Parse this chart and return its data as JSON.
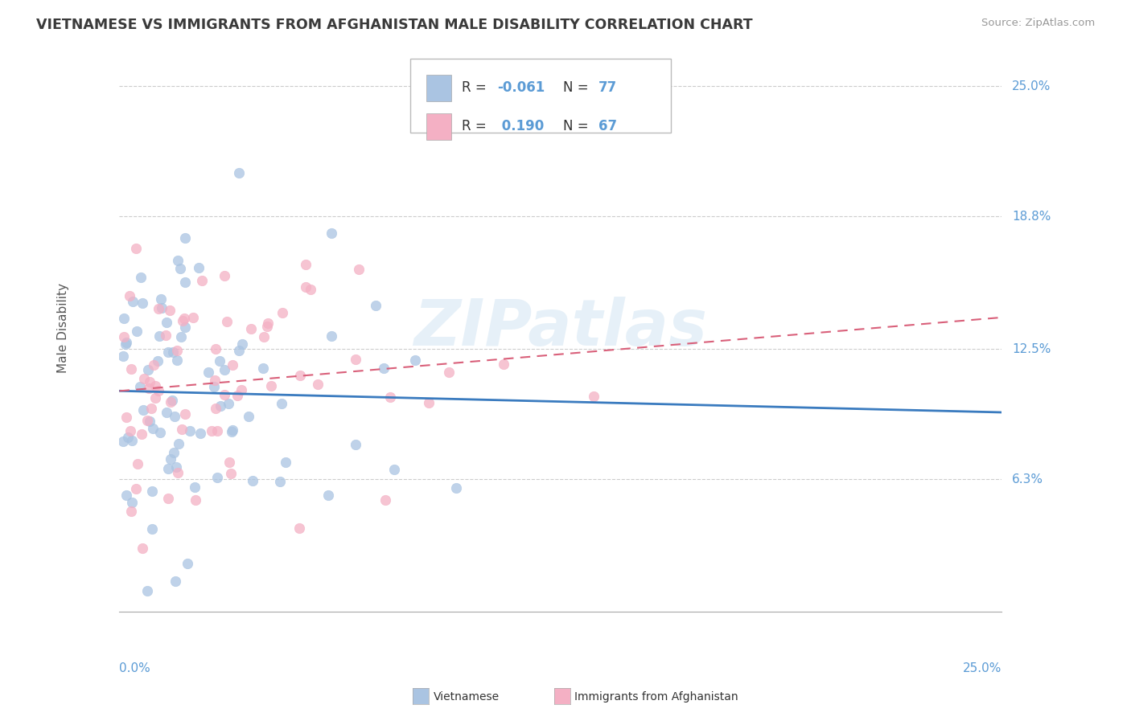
{
  "title": "VIETNAMESE VS IMMIGRANTS FROM AFGHANISTAN MALE DISABILITY CORRELATION CHART",
  "source": "Source: ZipAtlas.com",
  "xlabel_bottom_left": "0.0%",
  "xlabel_bottom_right": "25.0%",
  "ylabel": "Male Disability",
  "ytick_labels": [
    "6.3%",
    "12.5%",
    "18.8%",
    "25.0%"
  ],
  "ytick_values": [
    0.063,
    0.125,
    0.188,
    0.25
  ],
  "xrange": [
    0.0,
    0.25
  ],
  "yrange": [
    0.0,
    0.27
  ],
  "series1_name": "Vietnamese",
  "series1_color": "#aac4e2",
  "series1_line_color": "#3a7bbf",
  "series1_R": -0.061,
  "series1_N": 77,
  "series2_name": "Immigrants from Afghanistan",
  "series2_color": "#f4b0c4",
  "series2_line_color": "#d9607a",
  "series2_R": 0.19,
  "series2_N": 67,
  "watermark": "ZIPatlas",
  "background_color": "#ffffff",
  "grid_color": "#cccccc",
  "title_color": "#3a3a3a",
  "axis_label_color": "#5b9bd5",
  "legend_R1": "-0.061",
  "legend_N1": "77",
  "legend_R2": "0.190",
  "legend_N2": "67"
}
